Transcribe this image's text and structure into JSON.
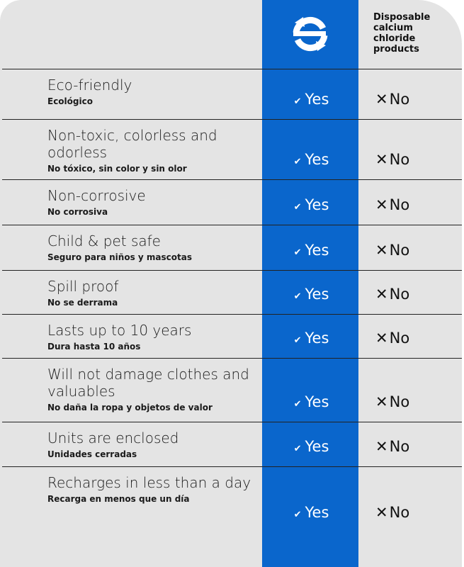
{
  "header": {
    "brand_icon": "recycle-e-logo-icon",
    "comparison_title": "Disposable calcium chloride products"
  },
  "colors": {
    "brand_blue": "#0a66cc",
    "background": "#e4e4e4"
  },
  "yes_label": "Yes",
  "no_label": "No",
  "rows": [
    {
      "title": "Eco-friendly",
      "subtitle": "Ecológico"
    },
    {
      "title": "Non-toxic, colorless and odorless",
      "subtitle": "No tóxico, sin color y sin olor"
    },
    {
      "title": "Non-corrosive",
      "subtitle": "No corrosiva"
    },
    {
      "title": "Child & pet safe",
      "subtitle": "Seguro para niños y mascotas"
    },
    {
      "title": "Spill proof",
      "subtitle": "No se derrama"
    },
    {
      "title": "Lasts up to 10 years",
      "subtitle": "Dura hasta 10 años"
    },
    {
      "title": "Will not damage clothes and valuables",
      "subtitle": "No daña la ropa y objetos de valor"
    },
    {
      "title": "Units are enclosed",
      "subtitle": "Unidades cerradas"
    },
    {
      "title": "Recharges in less than a day",
      "subtitle": "Recarga en menos que un día"
    }
  ]
}
